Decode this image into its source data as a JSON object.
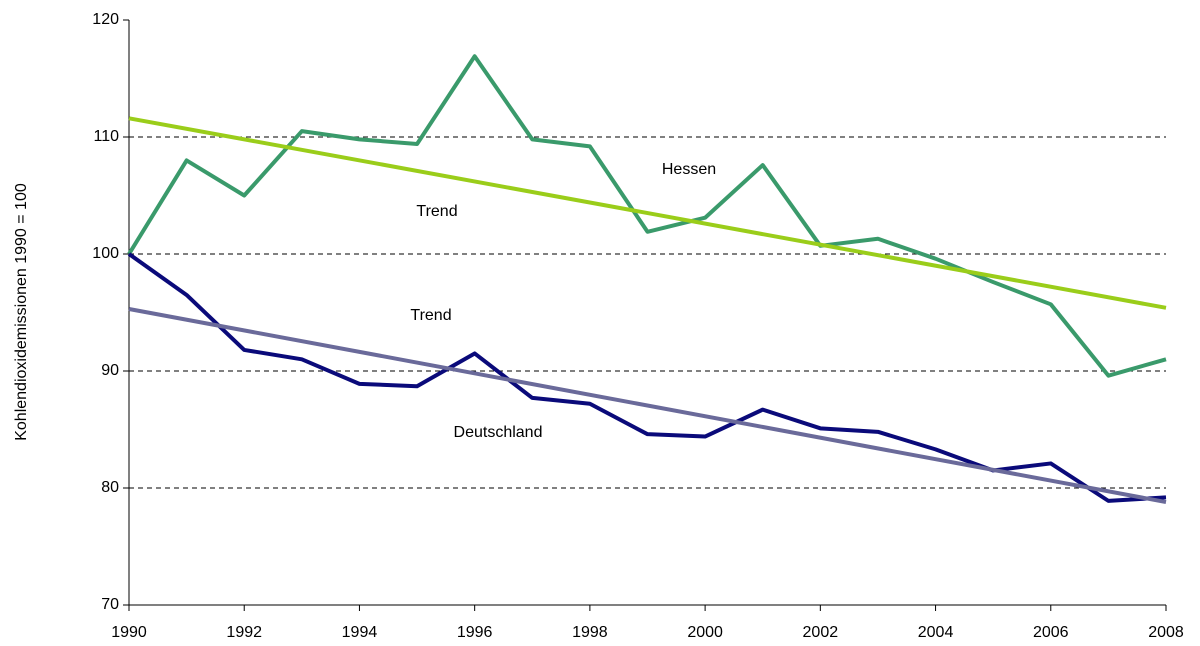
{
  "chart_data": {
    "type": "line",
    "y_label": "Kohlendioxidemissionen 1990 = 100",
    "xlim": [
      1990,
      2008
    ],
    "xticks": [
      1990,
      1992,
      1994,
      1996,
      1998,
      2000,
      2002,
      2004,
      2006,
      2008
    ],
    "ylim": [
      70,
      120
    ],
    "yticks": [
      70,
      80,
      90,
      100,
      110,
      120
    ],
    "grid": true,
    "series": [
      {
        "name": "Hessen",
        "color": "#3a9a6b",
        "x": [
          1990,
          1991,
          1992,
          1993,
          1994,
          1995,
          1996,
          1997,
          1998,
          1999,
          2000,
          2001,
          2002,
          2003,
          2004,
          2005,
          2006,
          2007,
          2008
        ],
        "values": [
          100,
          108,
          105,
          110.5,
          109.8,
          109.4,
          116.9,
          109.8,
          109.2,
          101.9,
          103.1,
          107.6,
          100.7,
          101.3,
          99.6,
          97.6,
          95.7,
          89.6,
          91.0
        ]
      },
      {
        "name": "Deutschland",
        "color": "#0a0a7a",
        "x": [
          1990,
          1991,
          1992,
          1993,
          1994,
          1995,
          1996,
          1997,
          1998,
          1999,
          2000,
          2001,
          2002,
          2003,
          2004,
          2005,
          2006,
          2007,
          2008
        ],
        "values": [
          100,
          96.5,
          91.8,
          91.0,
          88.9,
          88.7,
          91.5,
          87.7,
          87.2,
          84.6,
          84.4,
          86.7,
          85.1,
          84.8,
          83.3,
          81.5,
          82.1,
          78.9,
          79.2
        ]
      },
      {
        "name": "Trend",
        "color": "#9acd1a",
        "x": [
          1990,
          2008
        ],
        "values": [
          111.6,
          95.4
        ]
      },
      {
        "name": "Trend",
        "color": "#6a6a9a",
        "x": [
          1990,
          2008
        ],
        "values": [
          95.3,
          78.8
        ]
      }
    ]
  }
}
